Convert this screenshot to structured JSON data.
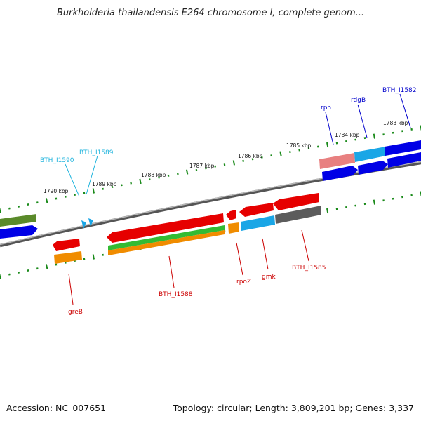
{
  "title": "Burkholderia thailandensis E264 chromosome I, complete genom...",
  "footer": {
    "accession": "Accession: NC_007651",
    "summary": "Topology: circular; Length: 3,809,201 bp; Genes: 3,337"
  },
  "colors": {
    "backbone": "#808080",
    "tick": "#1a8a1a",
    "red": "#e60000",
    "blue": "#0000e6",
    "cyan": "#1aa6e6",
    "green": "#33bb33",
    "olive": "#5a8a2a",
    "orange": "#f08c00",
    "salmon": "#e06060",
    "gray": "#4d4d4d",
    "label_red": "#cc0000",
    "label_blue": "#0000cc",
    "label_cyan": "#20b4dd"
  },
  "kbp_labels": [
    "1790 kbp",
    "1789 kbp",
    "1788 kbp",
    "1787 kbp",
    "1786 kbp",
    "1785 kbp",
    "1784 kbp",
    "1783 kbp"
  ],
  "gene_labels": [
    {
      "name": "BTH_I1590",
      "color": "label_cyan"
    },
    {
      "name": "BTH_I1589",
      "color": "label_cyan"
    },
    {
      "name": "rph",
      "color": "label_blue"
    },
    {
      "name": "rdgB",
      "color": "label_blue"
    },
    {
      "name": "BTH_I1582",
      "color": "label_blue"
    },
    {
      "name": "greB",
      "color": "label_red"
    },
    {
      "name": "BTH_I1588",
      "color": "label_red"
    },
    {
      "name": "rpoZ",
      "color": "label_red"
    },
    {
      "name": "gmk",
      "color": "label_red"
    },
    {
      "name": "BTH_I1585",
      "color": "label_red"
    }
  ]
}
